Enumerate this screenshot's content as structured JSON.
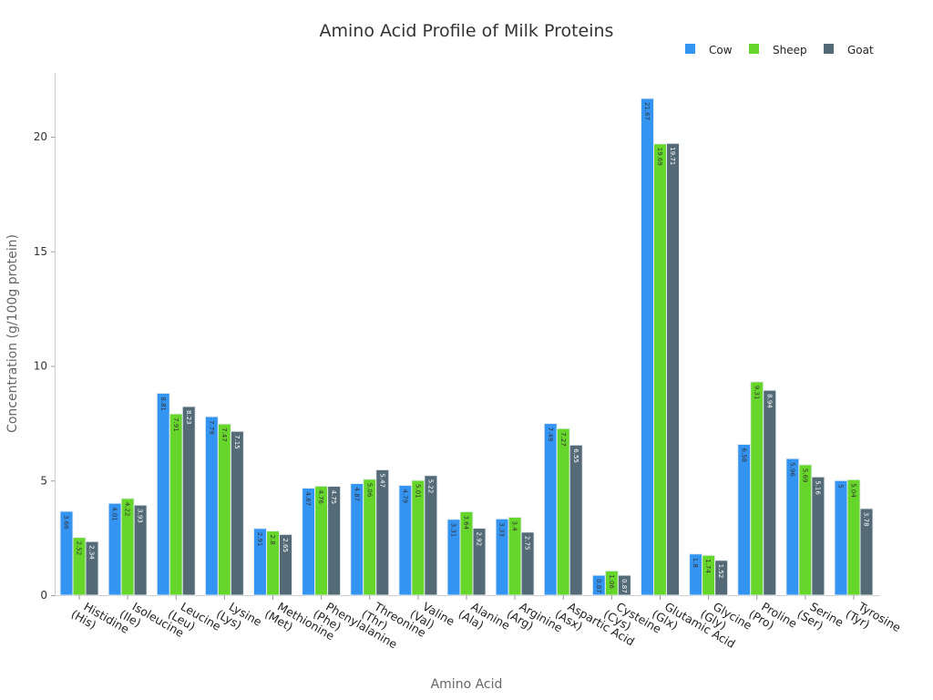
{
  "chart_data": {
    "type": "bar",
    "title": "Amino Acid Profile of Milk Proteins",
    "xlabel": "Amino Acid",
    "ylabel": "Concentration (g/100g protein)",
    "ylim": [
      0,
      22.8
    ],
    "yticks": [
      0,
      5,
      10,
      15,
      20
    ],
    "grid": false,
    "legend_position": "top-right",
    "categories": [
      "Histidine\n(His)",
      "Isoleucine\n(Ile)",
      "Leucine\n(Leu)",
      "Lysine\n(Lys)",
      "Methionine\n(Met)",
      "Phenylalanine\n(Phe)",
      "Threonine\n(Thr)",
      "Valine\n(Val)",
      "Alanine\n(Ala)",
      "Arginine\n(Arg)",
      "Aspartic Acid\n(Asx)",
      "Cysteine\n(Cys)",
      "Glutamic Acid\n(Glx)",
      "Glycine\n(Gly)",
      "Proline\n(Pro)",
      "Serine\n(Ser)",
      "Tyrosine\n(Tyr)"
    ],
    "series": [
      {
        "name": "Cow",
        "color": "#3394f2",
        "label_color": "#333333",
        "values": [
          3.66,
          4.01,
          8.81,
          7.79,
          2.91,
          4.67,
          4.87,
          4.79,
          3.31,
          3.33,
          7.49,
          0.87,
          21.67,
          1.8,
          6.58,
          5.96,
          5.0
        ]
      },
      {
        "name": "Sheep",
        "color": "#66d62a",
        "label_color": "#333333",
        "values": [
          2.52,
          4.22,
          7.91,
          7.47,
          2.8,
          4.76,
          5.06,
          5.01,
          3.64,
          3.4,
          7.27,
          1.06,
          19.69,
          1.74,
          9.31,
          5.69,
          5.04
        ]
      },
      {
        "name": "Goat",
        "color": "#546a76",
        "label_color": "#ffffff",
        "values": [
          2.34,
          3.93,
          8.23,
          7.15,
          2.65,
          4.75,
          5.47,
          5.22,
          2.92,
          2.75,
          6.55,
          0.87,
          19.71,
          1.52,
          8.94,
          5.16,
          3.78
        ]
      }
    ]
  }
}
